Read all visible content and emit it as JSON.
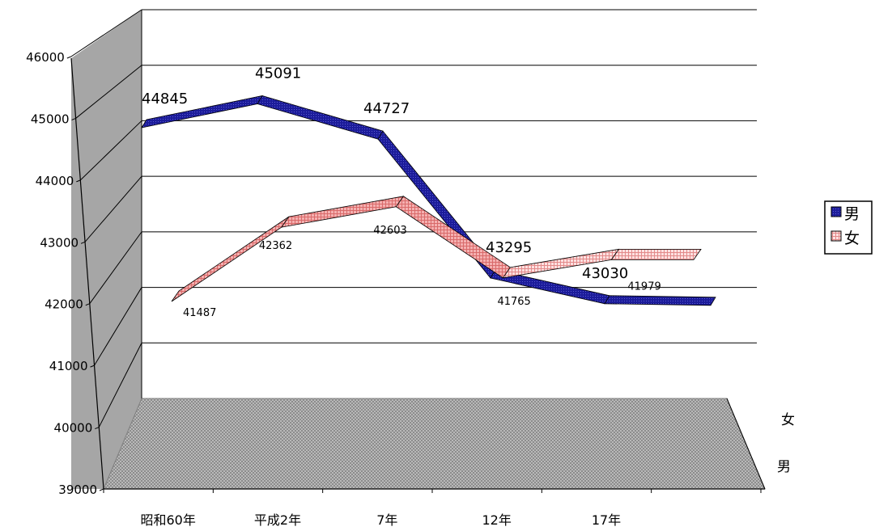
{
  "chart_data": {
    "type": "line",
    "style": "3d-ribbon",
    "categories": [
      "昭和60年",
      "平成2年",
      "7年",
      "12年",
      "17年"
    ],
    "series": [
      {
        "name": "男",
        "values": [
          44845,
          45091,
          44727,
          43295,
          43030
        ],
        "color": "#1a1a8c"
      },
      {
        "name": "女",
        "values": [
          41487,
          42362,
          42603,
          41765,
          41979
        ],
        "color": "#e87f7f"
      }
    ],
    "depth_labels": [
      "女",
      "男"
    ],
    "yticks": [
      "39000",
      "40000",
      "41000",
      "42000",
      "43000",
      "44000",
      "45000",
      "46000"
    ],
    "ylim": [
      39000,
      46000
    ],
    "grid": true,
    "legend_position": "right",
    "floor_color": "#9a9a9a",
    "wall_color": "#a6a6a6"
  }
}
